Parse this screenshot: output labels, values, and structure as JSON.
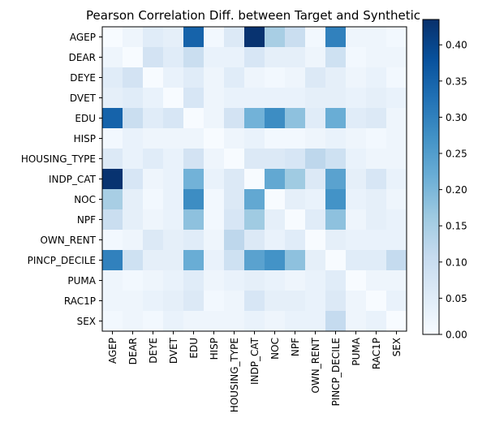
{
  "chart_data": {
    "type": "heatmap",
    "title": "Pearson Correlation Diff. between Target and Synthetic",
    "xlabel": "",
    "ylabel": "",
    "labels": [
      "AGEP",
      "DEAR",
      "DEYE",
      "DVET",
      "EDU",
      "HISP",
      "HOUSING_TYPE",
      "INDP_CAT",
      "NOC",
      "NPF",
      "OWN_RENT",
      "PINCP_DECILE",
      "PUMA",
      "RAC1P",
      "SEX"
    ],
    "matrix": [
      [
        0.0,
        0.02,
        0.05,
        0.04,
        0.35,
        0.01,
        0.06,
        0.43,
        0.15,
        0.1,
        0.01,
        0.3,
        0.02,
        0.02,
        0.01
      ],
      [
        0.02,
        0.0,
        0.08,
        0.05,
        0.1,
        0.03,
        0.03,
        0.07,
        0.04,
        0.04,
        0.02,
        0.09,
        0.01,
        0.02,
        0.02
      ],
      [
        0.05,
        0.08,
        0.0,
        0.03,
        0.05,
        0.02,
        0.05,
        0.02,
        0.01,
        0.02,
        0.06,
        0.04,
        0.02,
        0.03,
        0.01
      ],
      [
        0.04,
        0.05,
        0.03,
        0.0,
        0.07,
        0.02,
        0.03,
        0.03,
        0.03,
        0.03,
        0.04,
        0.04,
        0.03,
        0.04,
        0.03
      ],
      [
        0.35,
        0.1,
        0.05,
        0.07,
        0.0,
        0.02,
        0.08,
        0.21,
        0.28,
        0.18,
        0.05,
        0.22,
        0.05,
        0.06,
        0.02
      ],
      [
        0.01,
        0.03,
        0.02,
        0.02,
        0.02,
        0.0,
        0.02,
        0.03,
        0.01,
        0.01,
        0.02,
        0.03,
        0.02,
        0.01,
        0.02
      ],
      [
        0.06,
        0.03,
        0.05,
        0.03,
        0.08,
        0.02,
        0.0,
        0.06,
        0.06,
        0.07,
        0.12,
        0.09,
        0.03,
        0.02,
        0.02
      ],
      [
        0.43,
        0.07,
        0.02,
        0.03,
        0.21,
        0.03,
        0.06,
        0.0,
        0.23,
        0.16,
        0.06,
        0.24,
        0.04,
        0.07,
        0.03
      ],
      [
        0.15,
        0.04,
        0.01,
        0.03,
        0.28,
        0.01,
        0.06,
        0.23,
        0.0,
        0.04,
        0.03,
        0.27,
        0.03,
        0.04,
        0.02
      ],
      [
        0.1,
        0.04,
        0.02,
        0.03,
        0.18,
        0.01,
        0.07,
        0.16,
        0.04,
        0.0,
        0.05,
        0.18,
        0.02,
        0.04,
        0.03
      ],
      [
        0.01,
        0.02,
        0.06,
        0.04,
        0.05,
        0.02,
        0.12,
        0.06,
        0.03,
        0.05,
        0.0,
        0.04,
        0.03,
        0.03,
        0.03
      ],
      [
        0.3,
        0.09,
        0.04,
        0.04,
        0.22,
        0.03,
        0.09,
        0.24,
        0.27,
        0.18,
        0.04,
        0.0,
        0.05,
        0.05,
        0.11
      ],
      [
        0.02,
        0.01,
        0.02,
        0.03,
        0.05,
        0.02,
        0.03,
        0.04,
        0.03,
        0.02,
        0.03,
        0.05,
        0.0,
        0.02,
        0.02
      ],
      [
        0.02,
        0.02,
        0.03,
        0.04,
        0.06,
        0.01,
        0.02,
        0.07,
        0.04,
        0.04,
        0.03,
        0.06,
        0.02,
        0.0,
        0.03
      ],
      [
        0.01,
        0.02,
        0.01,
        0.03,
        0.02,
        0.02,
        0.02,
        0.03,
        0.02,
        0.03,
        0.03,
        0.11,
        0.02,
        0.03,
        0.0
      ]
    ],
    "vmin": 0.0,
    "vmax": 0.435,
    "colormap": "Blues",
    "colorbar_ticks": [
      "0.00",
      "0.05",
      "0.10",
      "0.15",
      "0.20",
      "0.25",
      "0.30",
      "0.35",
      "0.40"
    ],
    "colorbar_tick_values": [
      0,
      0.05,
      0.1,
      0.15,
      0.2,
      0.25,
      0.3,
      0.35,
      0.4
    ],
    "colors": {
      "low": "#f7fbff",
      "high": "#08306b"
    }
  }
}
